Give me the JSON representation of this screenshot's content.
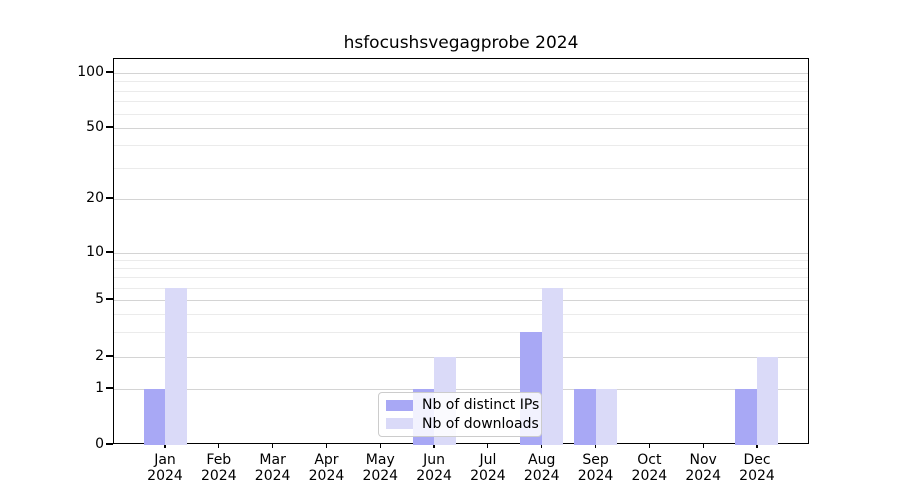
{
  "title": "hsfocushsvegagprobe 2024",
  "chart_data": {
    "type": "bar",
    "title": "hsfocushsvegagprobe 2024",
    "categories": [
      "Jan 2024",
      "Feb 2024",
      "Mar 2024",
      "Apr 2024",
      "May 2024",
      "Jun 2024",
      "Jul 2024",
      "Aug 2024",
      "Sep 2024",
      "Oct 2024",
      "Nov 2024",
      "Dec 2024"
    ],
    "series": [
      {
        "name": "Nb of distinct IPs",
        "color": "#a8a8f5",
        "values": [
          1,
          0,
          0,
          0,
          0,
          1,
          0,
          3,
          1,
          0,
          0,
          1
        ]
      },
      {
        "name": "Nb of downloads",
        "color": "#dadaf8",
        "values": [
          6,
          0,
          0,
          0,
          0,
          2,
          0,
          6,
          1,
          0,
          0,
          2
        ]
      }
    ],
    "yscale": "symlog",
    "yticks": [
      0,
      1,
      2,
      5,
      10,
      20,
      50,
      100
    ],
    "minor_gridline_values": [
      3,
      4,
      6,
      7,
      8,
      9,
      30,
      40,
      60,
      70,
      80,
      90
    ],
    "xlabel": "",
    "ylabel": "",
    "grid": "horizontal major+minor",
    "legend_position": "lower center",
    "axis_color": "#000000",
    "major_grid_color": "#d4d4d4",
    "minor_grid_color": "#ebebeb"
  },
  "legend": {
    "items": [
      {
        "label": "Nb of distinct IPs"
      },
      {
        "label": "Nb of downloads"
      }
    ]
  }
}
